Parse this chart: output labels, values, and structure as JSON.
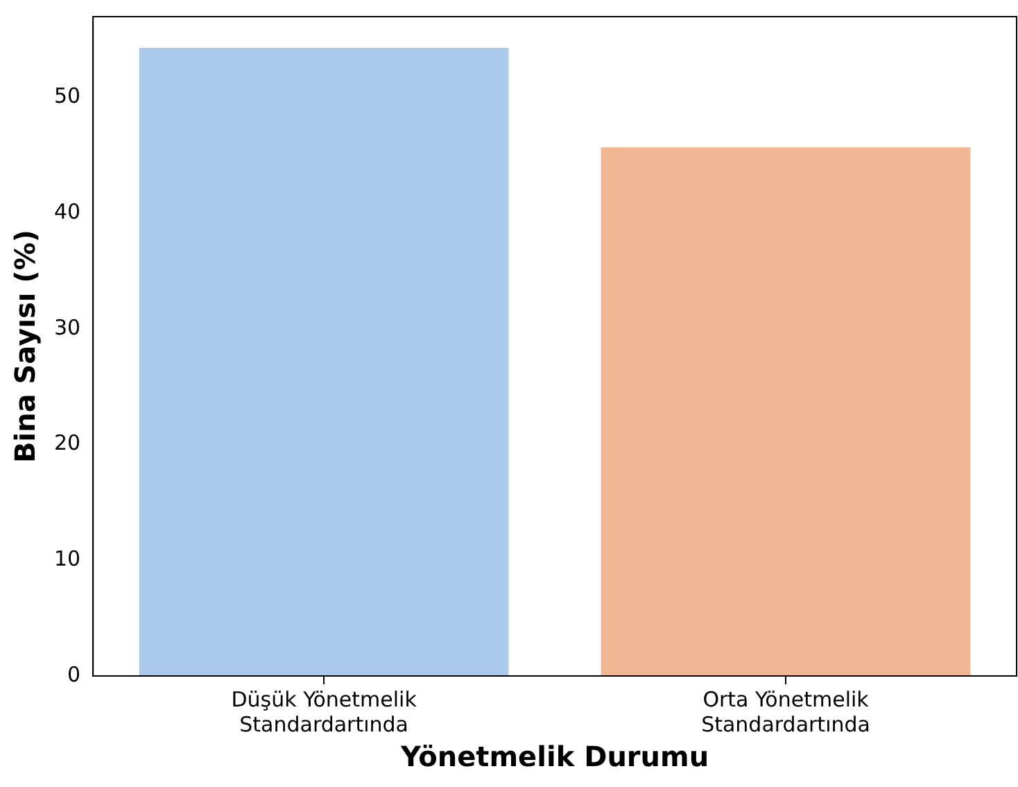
{
  "chart_data": {
    "type": "bar",
    "xlabel": "Yönetmelik Durumu",
    "ylabel": "Bina Sayısı (%)",
    "categories": [
      "Düşük Yönetmelik Standardartında",
      "Orta Yönetmelik Standardartında"
    ],
    "values": [
      54.3,
      45.7
    ],
    "colors": [
      "#abc9ea",
      "#f0b793"
    ],
    "ylim": [
      0,
      57
    ],
    "yticks": [
      0,
      10,
      20,
      30,
      40,
      50
    ],
    "grid": false,
    "legend": false
  }
}
